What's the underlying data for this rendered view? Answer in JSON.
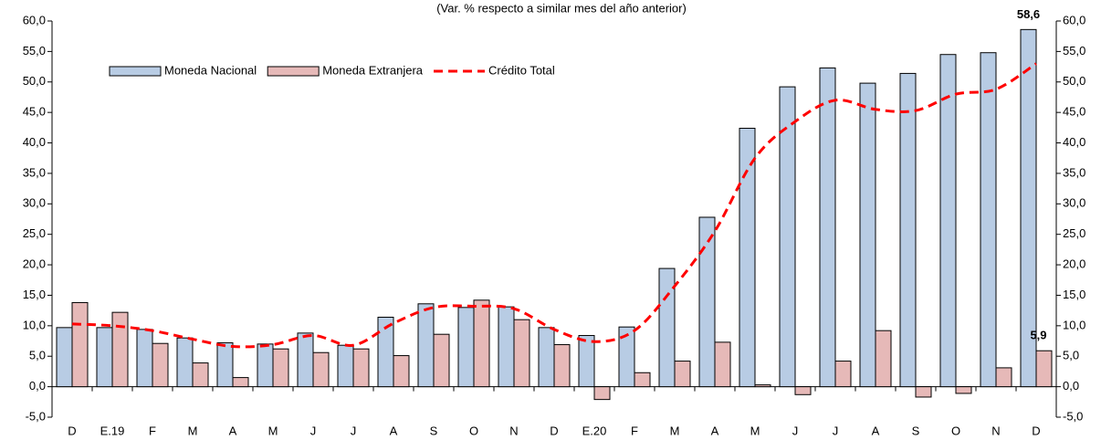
{
  "chart_data": {
    "type": "bar",
    "subtitle": "(Var. % respecto a similar mes del año anterior)",
    "categories": [
      "D",
      "E.19",
      "F",
      "M",
      "A",
      "M",
      "J",
      "J",
      "A",
      "S",
      "O",
      "N",
      "D",
      "E.20",
      "F",
      "M",
      "A",
      "M",
      "J",
      "J",
      "A",
      "S",
      "O",
      "N",
      "D"
    ],
    "series": [
      {
        "name": "Moneda Nacional",
        "type": "bar",
        "color": "#b8cce4",
        "values": [
          9.7,
          9.7,
          9.4,
          8.0,
          7.2,
          7.0,
          8.8,
          6.8,
          11.4,
          13.6,
          13.0,
          13.1,
          9.7,
          8.4,
          9.8,
          19.4,
          27.8,
          42.4,
          49.2,
          52.3,
          49.8,
          51.4,
          54.5,
          54.8,
          58.6
        ],
        "value_labels": [
          null,
          null,
          null,
          null,
          null,
          null,
          null,
          null,
          null,
          null,
          null,
          null,
          null,
          null,
          null,
          null,
          null,
          null,
          null,
          null,
          null,
          null,
          null,
          null,
          "58,6"
        ]
      },
      {
        "name": "Moneda Extranjera",
        "type": "bar",
        "color": "#e6b9b8",
        "values": [
          13.8,
          12.2,
          7.1,
          3.9,
          1.5,
          6.2,
          5.6,
          6.2,
          5.1,
          8.6,
          14.2,
          11.0,
          6.9,
          -2.1,
          2.3,
          4.2,
          7.3,
          0.3,
          -1.3,
          4.2,
          9.2,
          -1.7,
          -1.1,
          3.1,
          5.9
        ],
        "value_labels": [
          null,
          null,
          null,
          null,
          null,
          null,
          null,
          null,
          null,
          null,
          null,
          null,
          null,
          null,
          null,
          null,
          null,
          null,
          null,
          null,
          null,
          null,
          null,
          null,
          "5,9"
        ]
      },
      {
        "name": "Crédito Total",
        "type": "line",
        "color": "#ff0000",
        "values": [
          10.3,
          10.0,
          9.2,
          7.8,
          6.6,
          6.9,
          8.4,
          6.8,
          10.4,
          13.0,
          13.2,
          12.8,
          9.4,
          7.4,
          9.2,
          16.5,
          25.5,
          37.5,
          43.5,
          47.0,
          45.5,
          45.3,
          48.0,
          48.8,
          53.0
        ]
      }
    ],
    "ylim": [
      -5,
      60
    ],
    "yticks": [
      {
        "value": -5,
        "label": "-5,0"
      },
      {
        "value": 0,
        "label": "0,0"
      },
      {
        "value": 5,
        "label": "5,0"
      },
      {
        "value": 10,
        "label": "10,0"
      },
      {
        "value": 15,
        "label": "15,0"
      },
      {
        "value": 20,
        "label": "20,0"
      },
      {
        "value": 25,
        "label": "25,0"
      },
      {
        "value": 30,
        "label": "30,0"
      },
      {
        "value": 35,
        "label": "35,0"
      },
      {
        "value": 40,
        "label": "40,0"
      },
      {
        "value": 45,
        "label": "45,0"
      },
      {
        "value": 50,
        "label": "50,0"
      },
      {
        "value": 55,
        "label": "55,0"
      },
      {
        "value": 60,
        "label": "60,0"
      }
    ],
    "y2lim": [
      -5,
      60
    ],
    "y2ticks": [
      {
        "value": -5,
        "label": "-5,0"
      },
      {
        "value": 0,
        "label": "0,0"
      },
      {
        "value": 5,
        "label": "5,0"
      },
      {
        "value": 10,
        "label": "10,0"
      },
      {
        "value": 15,
        "label": "15,0"
      },
      {
        "value": 20,
        "label": "20,0"
      },
      {
        "value": 25,
        "label": "25,0"
      },
      {
        "value": 30,
        "label": "30,0"
      },
      {
        "value": 35,
        "label": "35,0"
      },
      {
        "value": 40,
        "label": "40,0"
      },
      {
        "value": 45,
        "label": "45,0"
      },
      {
        "value": 50,
        "label": "50,0"
      },
      {
        "value": 55,
        "label": "55,0"
      },
      {
        "value": 60,
        "label": "60,0"
      }
    ],
    "grid": false,
    "legend": "top-left"
  }
}
